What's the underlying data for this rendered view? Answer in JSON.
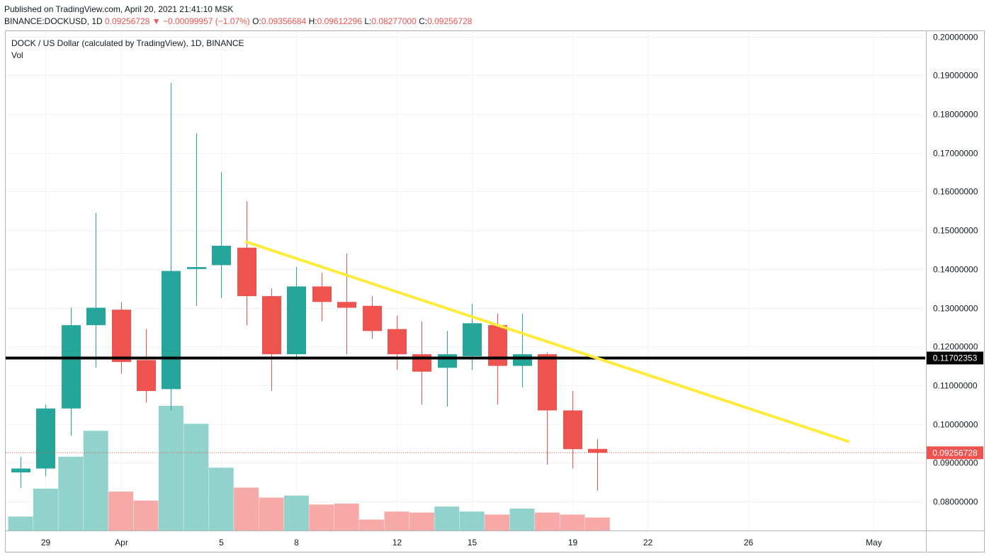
{
  "header": {
    "published": "Published on TradingView.com, April 20, 2021 21:41:10 MSK",
    "symbol": "BINANCE:DOCKUSD, 1D",
    "last": "0.09256728",
    "change_arrow": "▼",
    "change": "−0.00099957 (−1.07%)",
    "o_label": "O:",
    "o_value": "0.09356684",
    "h_label": "H:",
    "h_value": "0.09612296",
    "l_label": "L:",
    "l_value": "0.08277000",
    "c_label": "C:",
    "c_value": "0.09256728"
  },
  "legend": {
    "title": "DOCK / US Dollar (calculated by TradingView), 1D, BINANCE",
    "volume": "Vol"
  },
  "colors": {
    "up": "#26a69a",
    "down": "#ef5350",
    "vol_up": "#92d2cc",
    "vol_down": "#f7a9a7",
    "trendline": "#ffeb3b",
    "level": "#000000"
  },
  "chart_data": {
    "type": "candlestick",
    "ylim": [
      0.073,
      0.2
    ],
    "y_ticks": [
      "0.08000000",
      "0.09000000",
      "0.10000000",
      "0.11000000",
      "0.12000000",
      "0.13000000",
      "0.14000000",
      "0.15000000",
      "0.16000000",
      "0.17000000",
      "0.18000000",
      "0.19000000",
      "0.20000000"
    ],
    "y_tick_values": [
      0.08,
      0.09,
      0.1,
      0.11,
      0.12,
      0.13,
      0.14,
      0.15,
      0.16,
      0.17,
      0.18,
      0.19,
      0.2
    ],
    "x_range": [
      "2021-03-28",
      "2021-05-02"
    ],
    "x_ticks": [
      {
        "date": "2021-03-29",
        "label": "29"
      },
      {
        "date": "2021-04-01",
        "label": "Apr"
      },
      {
        "date": "2021-04-05",
        "label": "5"
      },
      {
        "date": "2021-04-08",
        "label": "8"
      },
      {
        "date": "2021-04-12",
        "label": "12"
      },
      {
        "date": "2021-04-15",
        "label": "15"
      },
      {
        "date": "2021-04-19",
        "label": "19"
      },
      {
        "date": "2021-04-22",
        "label": "22"
      },
      {
        "date": "2021-04-26",
        "label": "26"
      },
      {
        "date": "2021-05-01",
        "label": "May"
      }
    ],
    "candles": [
      {
        "date": "2021-03-28",
        "o": 0.0875,
        "h": 0.0915,
        "l": 0.0835,
        "c": 0.0885
      },
      {
        "date": "2021-03-29",
        "o": 0.0885,
        "h": 0.105,
        "l": 0.0865,
        "c": 0.104
      },
      {
        "date": "2021-03-30",
        "o": 0.104,
        "h": 0.13,
        "l": 0.097,
        "c": 0.1255
      },
      {
        "date": "2021-03-31",
        "o": 0.1255,
        "h": 0.1545,
        "l": 0.1145,
        "c": 0.13
      },
      {
        "date": "2021-04-01",
        "o": 0.1295,
        "h": 0.1315,
        "l": 0.113,
        "c": 0.116
      },
      {
        "date": "2021-04-02",
        "o": 0.1165,
        "h": 0.1245,
        "l": 0.1055,
        "c": 0.1085
      },
      {
        "date": "2021-04-03",
        "o": 0.109,
        "h": 0.188,
        "l": 0.1035,
        "c": 0.1395
      },
      {
        "date": "2021-04-04",
        "o": 0.14,
        "h": 0.175,
        "l": 0.1305,
        "c": 0.1405
      },
      {
        "date": "2021-04-05",
        "o": 0.141,
        "h": 0.165,
        "l": 0.1325,
        "c": 0.146
      },
      {
        "date": "2021-04-06",
        "o": 0.1455,
        "h": 0.1575,
        "l": 0.1255,
        "c": 0.133
      },
      {
        "date": "2021-04-07",
        "o": 0.133,
        "h": 0.135,
        "l": 0.1085,
        "c": 0.118
      },
      {
        "date": "2021-04-08",
        "o": 0.118,
        "h": 0.1405,
        "l": 0.1165,
        "c": 0.1355
      },
      {
        "date": "2021-04-09",
        "o": 0.1355,
        "h": 0.139,
        "l": 0.1265,
        "c": 0.1315
      },
      {
        "date": "2021-04-10",
        "o": 0.1315,
        "h": 0.144,
        "l": 0.118,
        "c": 0.13
      },
      {
        "date": "2021-04-11",
        "o": 0.1305,
        "h": 0.133,
        "l": 0.122,
        "c": 0.124
      },
      {
        "date": "2021-04-12",
        "o": 0.1245,
        "h": 0.128,
        "l": 0.114,
        "c": 0.118
      },
      {
        "date": "2021-04-13",
        "o": 0.118,
        "h": 0.1265,
        "l": 0.105,
        "c": 0.1135
      },
      {
        "date": "2021-04-14",
        "o": 0.1145,
        "h": 0.124,
        "l": 0.1045,
        "c": 0.118
      },
      {
        "date": "2021-04-15",
        "o": 0.1175,
        "h": 0.131,
        "l": 0.114,
        "c": 0.126
      },
      {
        "date": "2021-04-16",
        "o": 0.1255,
        "h": 0.1285,
        "l": 0.105,
        "c": 0.115
      },
      {
        "date": "2021-04-17",
        "o": 0.115,
        "h": 0.1285,
        "l": 0.1095,
        "c": 0.118
      },
      {
        "date": "2021-04-18",
        "o": 0.118,
        "h": 0.1185,
        "l": 0.0895,
        "c": 0.1035
      },
      {
        "date": "2021-04-19",
        "o": 0.1035,
        "h": 0.1085,
        "l": 0.0885,
        "c": 0.0935
      },
      {
        "date": "2021-04-20",
        "o": 0.09356684,
        "h": 0.09612296,
        "l": 0.08277,
        "c": 0.09256728
      }
    ],
    "volume": {
      "max": 100,
      "values": [
        14,
        42,
        74,
        100,
        39,
        30,
        125,
        107,
        63,
        43,
        33,
        35,
        26,
        27,
        11,
        19,
        18,
        24,
        19,
        16,
        22,
        18,
        16,
        13
      ]
    },
    "hline": {
      "value": 0.11702353,
      "label": "0.11702353"
    },
    "last_price": {
      "value": 0.09256728,
      "label": "0.09256728"
    },
    "trendline": {
      "from": {
        "date": "2021-04-06",
        "value": 0.147
      },
      "to": {
        "date": "2021-04-30",
        "value": 0.0955
      }
    }
  }
}
